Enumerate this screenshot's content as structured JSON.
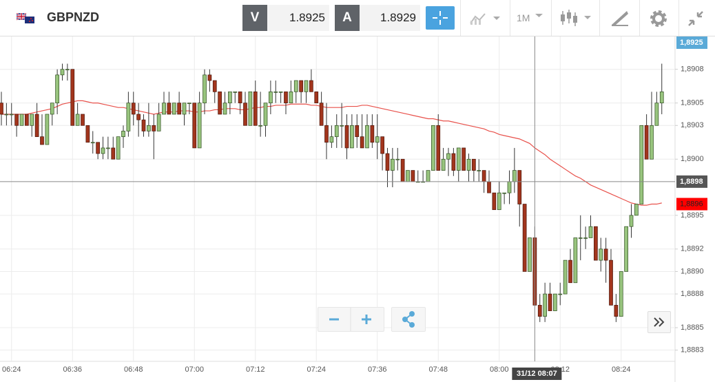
{
  "header": {
    "symbol": "GBPNZD",
    "bid": {
      "label": "V",
      "value": 1.8925
    },
    "ask": {
      "label": "A",
      "value": 1.8929
    },
    "timeframe": "1M"
  },
  "chart_data": {
    "type": "candlestick",
    "categories": [
      null,
      null,
      "06:24",
      null,
      null,
      null,
      null,
      null,
      null,
      null,
      null,
      null,
      null,
      null,
      "06:36",
      null,
      null,
      null,
      null,
      null,
      null,
      null,
      null,
      null,
      null,
      null,
      "06:48",
      null,
      null,
      null,
      null,
      null,
      null,
      null,
      null,
      null,
      null,
      null,
      "07:00",
      null,
      null,
      null,
      null,
      null,
      null,
      null,
      null,
      null,
      null,
      null,
      "07:12",
      null,
      null,
      null,
      null,
      null,
      null,
      null,
      null,
      null,
      null,
      null,
      "07:24",
      null,
      null,
      null,
      null,
      null,
      null,
      null,
      null,
      null,
      null,
      null,
      "07:36",
      null,
      null,
      null,
      null,
      null,
      null,
      null,
      null,
      null,
      null,
      null,
      "07:48",
      null,
      null,
      null,
      null,
      null,
      null,
      null,
      null,
      null,
      null,
      null,
      "08:00",
      null,
      null,
      null,
      null,
      null,
      null,
      null,
      null,
      null,
      null,
      null,
      "08:12",
      null,
      null,
      null,
      null,
      null,
      null,
      null,
      null,
      null,
      null,
      null,
      "08:24",
      null,
      null,
      null,
      null,
      null,
      null,
      null,
      null
    ],
    "candles": [
      [
        1.8905,
        1.8906,
        1.8903,
        1.8904
      ],
      [
        1.8904,
        1.8905,
        1.8903,
        1.8904
      ],
      [
        1.8904,
        1.8905,
        1.8903,
        1.8904
      ],
      [
        1.8904,
        1.8904,
        1.8902,
        1.8903
      ],
      [
        1.8903,
        1.8904,
        1.8903,
        1.8904
      ],
      [
        1.8904,
        1.8904,
        1.8903,
        1.8903
      ],
      [
        1.8903,
        1.8904,
        1.8902,
        1.8904
      ],
      [
        1.8904,
        1.8905,
        1.8902,
        1.8902
      ],
      [
        1.8902,
        1.8904,
        1.89013,
        1.89013
      ],
      [
        1.89013,
        1.8904,
        1.89013,
        1.8904
      ],
      [
        1.8904,
        1.8905,
        1.8903,
        1.8905
      ],
      [
        1.8905,
        1.8908,
        1.8904,
        1.89075
      ],
      [
        1.89075,
        1.89085,
        1.8907,
        1.8908
      ],
      [
        1.8908,
        1.89085,
        1.8907,
        1.8908
      ],
      [
        1.8908,
        1.8908,
        1.8903,
        1.8903
      ],
      [
        1.8903,
        1.8905,
        1.8903,
        1.8904
      ],
      [
        1.8904,
        1.8904,
        1.8903,
        1.8903
      ],
      [
        1.8903,
        1.8903,
        1.89015,
        1.89015
      ],
      [
        1.89015,
        1.89025,
        1.89005,
        1.89015
      ],
      [
        1.89015,
        1.89015,
        1.89,
        1.89005
      ],
      [
        1.89005,
        1.8902,
        1.89,
        1.8901
      ],
      [
        1.8901,
        1.8902,
        1.89,
        1.8901
      ],
      [
        1.8901,
        1.8902,
        1.89,
        1.89
      ],
      [
        1.89,
        1.8902,
        1.89,
        1.8902
      ],
      [
        1.8902,
        1.8903,
        1.8901,
        1.89025
      ],
      [
        1.89025,
        1.8906,
        1.8902,
        1.8905
      ],
      [
        1.8905,
        1.8906,
        1.8903,
        1.8904
      ],
      [
        1.8904,
        1.8905,
        1.8902,
        1.89035
      ],
      [
        1.89035,
        1.8904,
        1.8902,
        1.89025
      ],
      [
        1.89025,
        1.8905,
        1.8902,
        1.8903
      ],
      [
        1.8903,
        1.8904,
        1.89,
        1.89025
      ],
      [
        1.89025,
        1.8905,
        1.89025,
        1.8904
      ],
      [
        1.8904,
        1.8906,
        1.8904,
        1.8905
      ],
      [
        1.8905,
        1.8906,
        1.8904,
        1.8904
      ],
      [
        1.8904,
        1.8905,
        1.8904,
        1.8905
      ],
      [
        1.8905,
        1.8906,
        1.8904,
        1.8904
      ],
      [
        1.8904,
        1.8905,
        1.8903,
        1.8905
      ],
      [
        1.8905,
        1.8905,
        1.8904,
        1.8905
      ],
      [
        1.8905,
        1.8905,
        1.8901,
        1.8901
      ],
      [
        1.8901,
        1.8906,
        1.8901,
        1.8905
      ],
      [
        1.8905,
        1.8908,
        1.8904,
        1.89075
      ],
      [
        1.89075,
        1.8908,
        1.8906,
        1.8907
      ],
      [
        1.8907,
        1.8907,
        1.8905,
        1.8906
      ],
      [
        1.8906,
        1.8906,
        1.8904,
        1.8904
      ],
      [
        1.8904,
        1.8906,
        1.8904,
        1.8905
      ],
      [
        1.8905,
        1.8906,
        1.8904,
        1.8906
      ],
      [
        1.8906,
        1.8906,
        1.8905,
        1.8906
      ],
      [
        1.8906,
        1.8906,
        1.8904,
        1.8905
      ],
      [
        1.8905,
        1.8906,
        1.8903,
        1.8903
      ],
      [
        1.8903,
        1.8906,
        1.8903,
        1.8906
      ],
      [
        1.8906,
        1.8907,
        1.8903,
        1.8903
      ],
      [
        1.8903,
        1.8906,
        1.8902,
        1.8903
      ],
      [
        1.8903,
        1.8905,
        1.8902,
        1.8905
      ],
      [
        1.8905,
        1.8907,
        1.8904,
        1.8906
      ],
      [
        1.8906,
        1.8907,
        1.8905,
        1.8906
      ],
      [
        1.8906,
        1.8906,
        1.8905,
        1.8906
      ],
      [
        1.8906,
        1.8906,
        1.8904,
        1.8905
      ],
      [
        1.8905,
        1.8907,
        1.8905,
        1.8906
      ],
      [
        1.8906,
        1.8907,
        1.8905,
        1.8907
      ],
      [
        1.8907,
        1.8907,
        1.8905,
        1.8906
      ],
      [
        1.8906,
        1.8907,
        1.8905,
        1.8907
      ],
      [
        1.8907,
        1.8908,
        1.8906,
        1.8906
      ],
      [
        1.8906,
        1.8906,
        1.8905,
        1.8905
      ],
      [
        1.8905,
        1.8906,
        1.8903,
        1.8903
      ],
      [
        1.8903,
        1.8905,
        1.89,
        1.89015
      ],
      [
        1.89015,
        1.8903,
        1.8901,
        1.8902
      ],
      [
        1.8902,
        1.8904,
        1.8901,
        1.8903
      ],
      [
        1.8903,
        1.8905,
        1.8901,
        1.8903
      ],
      [
        1.8903,
        1.8904,
        1.89,
        1.8901
      ],
      [
        1.8901,
        1.8904,
        1.8901,
        1.8903
      ],
      [
        1.8903,
        1.8904,
        1.8901,
        1.8902
      ],
      [
        1.8902,
        1.8904,
        1.8901,
        1.8901
      ],
      [
        1.8901,
        1.8904,
        1.8901,
        1.8903
      ],
      [
        1.8903,
        1.8904,
        1.8901,
        1.89015
      ],
      [
        1.89015,
        1.8904,
        1.89,
        1.8902
      ],
      [
        1.8902,
        1.8902,
        1.8899,
        1.89005
      ],
      [
        1.89005,
        1.8901,
        1.88975,
        1.8899
      ],
      [
        1.8899,
        1.8901,
        1.88975,
        1.89
      ],
      [
        1.89,
        1.8901,
        1.8899,
        1.89
      ],
      [
        1.89,
        1.89,
        1.8898,
        1.8898
      ],
      [
        1.8898,
        1.8899,
        1.8898,
        1.8899
      ],
      [
        1.8899,
        1.8899,
        1.8898,
        1.8898
      ],
      [
        1.8898,
        1.8899,
        1.8898,
        1.8898
      ],
      [
        1.8898,
        1.8899,
        1.8898,
        1.8898
      ],
      [
        1.8898,
        1.8899,
        1.8898,
        1.8899
      ],
      [
        1.8899,
        1.8903,
        1.8899,
        1.8903
      ],
      [
        1.8903,
        1.8904,
        1.8899,
        1.8899
      ],
      [
        1.8899,
        1.8901,
        1.8899,
        1.89
      ],
      [
        1.89,
        1.8901,
        1.88985,
        1.89005
      ],
      [
        1.89005,
        1.8901,
        1.88985,
        1.8899
      ],
      [
        1.8899,
        1.8901,
        1.8898,
        1.8901
      ],
      [
        1.8901,
        1.8901,
        1.8899,
        1.8899
      ],
      [
        1.8899,
        1.89005,
        1.8898,
        1.89
      ],
      [
        1.89,
        1.89,
        1.8898,
        1.8899
      ],
      [
        1.8899,
        1.89,
        1.8898,
        1.8899
      ],
      [
        1.8899,
        1.8899,
        1.8897,
        1.8898
      ],
      [
        1.8898,
        1.8899,
        1.8897,
        1.8897
      ],
      [
        1.8897,
        1.8897,
        1.88955,
        1.88955
      ],
      [
        1.88955,
        1.8898,
        1.88955,
        1.8897
      ],
      [
        1.8897,
        1.8897,
        1.8896,
        1.8897
      ],
      [
        1.8897,
        1.8899,
        1.8896,
        1.8898
      ],
      [
        1.8898,
        1.8901,
        1.8897,
        1.8899
      ],
      [
        1.8899,
        1.8899,
        1.8894,
        1.8896
      ],
      [
        1.8896,
        1.8896,
        1.889,
        1.889
      ],
      [
        1.889,
        1.8893,
        1.889,
        1.8893
      ],
      [
        1.8893,
        1.8894,
        1.8887,
        1.8887
      ],
      [
        1.8887,
        1.8888,
        1.88855,
        1.8886
      ],
      [
        1.8886,
        1.8889,
        1.88855,
        1.8888
      ],
      [
        1.8888,
        1.8889,
        1.88865,
        1.88865
      ],
      [
        1.88865,
        1.8888,
        1.88865,
        1.8888
      ],
      [
        1.8888,
        1.8889,
        1.8887,
        1.8888
      ],
      [
        1.8888,
        1.8891,
        1.8888,
        1.8891
      ],
      [
        1.8891,
        1.8892,
        1.8889,
        1.8889
      ],
      [
        1.8889,
        1.8893,
        1.8889,
        1.8893
      ],
      [
        1.8893,
        1.8895,
        1.8891,
        1.8893
      ],
      [
        1.8893,
        1.8894,
        1.8892,
        1.8893
      ],
      [
        1.8893,
        1.8895,
        1.8893,
        1.8894
      ],
      [
        1.8894,
        1.8894,
        1.8891,
        1.8891
      ],
      [
        1.8891,
        1.8893,
        1.889,
        1.8892
      ],
      [
        1.8892,
        1.8893,
        1.8889,
        1.8891
      ],
      [
        1.8891,
        1.8892,
        1.8887,
        1.8887
      ],
      [
        1.8887,
        1.8888,
        1.88855,
        1.8886
      ],
      [
        1.8886,
        1.889,
        1.8886,
        1.889
      ],
      [
        1.889,
        1.8894,
        1.889,
        1.8894
      ],
      [
        1.8894,
        1.8896,
        1.8893,
        1.8895
      ],
      [
        1.8895,
        1.8896,
        1.8895,
        1.8896
      ],
      [
        1.8896,
        1.8903,
        1.8896,
        1.8903
      ],
      [
        1.8903,
        1.8904,
        1.89,
        1.89
      ],
      [
        1.89,
        1.8906,
        1.89,
        1.8903
      ],
      [
        1.8903,
        1.8906,
        1.8903,
        1.8905
      ],
      [
        1.8905,
        1.89085,
        1.8904,
        1.8906
      ]
    ],
    "up_color": "#98c47e",
    "down_color": "#a2351d",
    "ma": {
      "color": "#e8504a",
      "values": [
        1.8904,
        1.8904,
        1.8904,
        1.8904,
        1.8904,
        1.8904,
        1.89041,
        1.89042,
        1.89043,
        1.89044,
        1.89045,
        1.89047,
        1.89049,
        1.8905,
        1.89051,
        1.89052,
        1.89052,
        1.89051,
        1.8905,
        1.8905,
        1.89049,
        1.89048,
        1.89047,
        1.89046,
        1.89046,
        1.89045,
        1.89044,
        1.89043,
        1.89042,
        1.89041,
        1.8904,
        1.89041,
        1.89042,
        1.89042,
        1.89042,
        1.89043,
        1.89043,
        1.89043,
        1.89042,
        1.89042,
        1.89043,
        1.89043,
        1.89044,
        1.89044,
        1.89045,
        1.89045,
        1.89045,
        1.89044,
        1.89044,
        1.89045,
        1.89046,
        1.89046,
        1.89047,
        1.89047,
        1.89048,
        1.89048,
        1.89048,
        1.89049,
        1.89049,
        1.89049,
        1.89049,
        1.89048,
        1.89048,
        1.89047,
        1.89046,
        1.89046,
        1.89046,
        1.89046,
        1.89047,
        1.89047,
        1.89047,
        1.89048,
        1.89048,
        1.89047,
        1.89046,
        1.89045,
        1.89044,
        1.89043,
        1.89042,
        1.89041,
        1.8904,
        1.89039,
        1.89038,
        1.89037,
        1.89036,
        1.89036,
        1.89035,
        1.89034,
        1.89034,
        1.89033,
        1.89032,
        1.89031,
        1.8903,
        1.89029,
        1.89028,
        1.89027,
        1.89025,
        1.89024,
        1.89022,
        1.89021,
        1.8902,
        1.89019,
        1.89018,
        1.89016,
        1.89014,
        1.8901,
        1.89007,
        1.89004,
        1.89,
        1.88997,
        1.88994,
        1.88991,
        1.88988,
        1.88985,
        1.88983,
        1.8898,
        1.88977,
        1.88975,
        1.88973,
        1.88971,
        1.88969,
        1.88967,
        1.88965,
        1.88963,
        1.88961,
        1.8896,
        1.88959,
        1.88959,
        1.8896,
        1.8896,
        1.88961
      ]
    },
    "ylim": [
      1.8882,
      1.89108
    ],
    "yticks": [
      {
        "value": 1.8883,
        "label": "1,8883"
      },
      {
        "value": 1.8885,
        "label": "1,8885"
      },
      {
        "value": 1.8888,
        "label": "1,8888"
      },
      {
        "value": 1.889,
        "label": "1,8890"
      },
      {
        "value": 1.8892,
        "label": "1,8892"
      },
      {
        "value": 1.8895,
        "label": "1,8895"
      },
      {
        "value": 1.89,
        "label": "1,8900"
      },
      {
        "value": 1.8903,
        "label": "1,8903"
      },
      {
        "value": 1.8905,
        "label": "1,8905"
      },
      {
        "value": 1.8908,
        "label": "1,8908"
      }
    ],
    "grid": true,
    "last_price": {
      "value": 1.8925,
      "label": "1,8925",
      "color": "#5aaad8"
    },
    "ma_price": {
      "value": 1.8896,
      "label": "1,8896",
      "color": "#ff0000"
    },
    "crosshair": {
      "index": 105,
      "price": {
        "value": 1.8898,
        "label": "1,8898"
      },
      "time": "31/12 08:07"
    }
  }
}
